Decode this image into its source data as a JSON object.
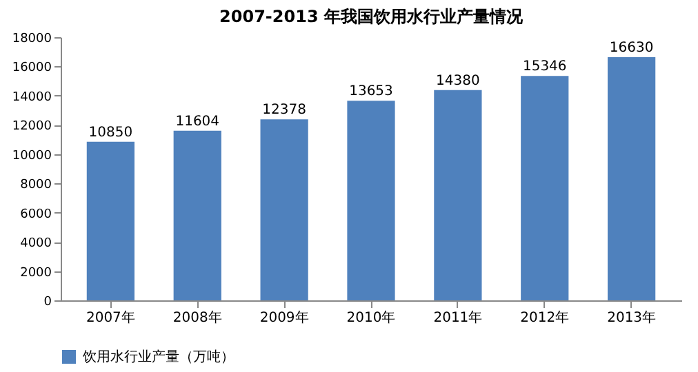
{
  "chart_data": {
    "type": "bar",
    "title": "2007-2013 年我国饮用水行业产量情况",
    "categories": [
      "2007年",
      "2008年",
      "2009年",
      "2010年",
      "2011年",
      "2012年",
      "2013年"
    ],
    "series": [
      {
        "name": "饮用水行业产量（万吨）",
        "color": "#4f81bd",
        "values": [
          10850,
          11604,
          12378,
          13653,
          14380,
          15346,
          16630
        ]
      }
    ],
    "ylim": [
      0,
      18000
    ],
    "yticks": [
      0,
      2000,
      4000,
      6000,
      8000,
      10000,
      12000,
      14000,
      16000,
      18000
    ],
    "data_labels": true,
    "grid": false,
    "legend": "bottom"
  }
}
